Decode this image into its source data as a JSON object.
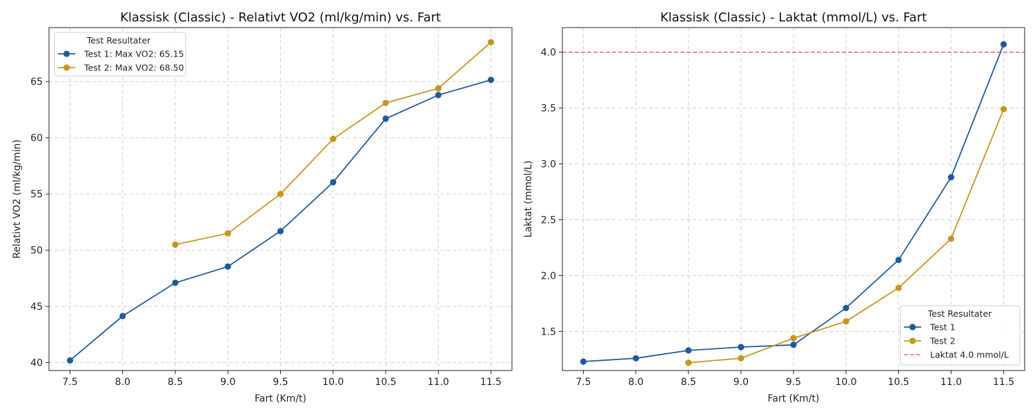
{
  "chart_data": [
    {
      "type": "line",
      "title": "Klassisk (Classic) - Relativt VO2 (ml/kg/min) vs. Fart",
      "xlabel": "Fart (Km/t)",
      "ylabel": "Relativt VO2 (ml/kg/min)",
      "xlim": [
        7.3,
        11.7
      ],
      "ylim": [
        39.3,
        69.8
      ],
      "xticks": [
        7.5,
        8.0,
        8.5,
        9.0,
        9.5,
        10.0,
        10.5,
        11.0,
        11.5
      ],
      "xtick_labels": [
        "7.5",
        "8.0",
        "8.5",
        "9.0",
        "9.5",
        "10.0",
        "10.5",
        "11.0",
        "11.5"
      ],
      "yticks": [
        40,
        45,
        50,
        55,
        60,
        65
      ],
      "ytick_labels": [
        "40",
        "45",
        "50",
        "55",
        "60",
        "65"
      ],
      "grid": true,
      "legend": {
        "title": "Test Resultater",
        "position": "top-left",
        "entries": [
          "Test 1: Max VO2: 65.15",
          "Test 2: Max VO2: 68.50"
        ]
      },
      "series": [
        {
          "name": "Test 1: Max VO2: 65.15",
          "color": "#1f5a9e",
          "x": [
            7.5,
            8.0,
            8.5,
            9.0,
            9.5,
            10.0,
            10.5,
            11.0,
            11.5
          ],
          "values": [
            40.2,
            44.15,
            47.1,
            48.55,
            51.7,
            56.05,
            61.7,
            63.8,
            65.15
          ]
        },
        {
          "name": "Test 2: Max VO2: 68.50",
          "color": "#c9941f",
          "x": [
            8.5,
            9.0,
            9.5,
            10.0,
            10.5,
            11.0,
            11.5
          ],
          "values": [
            50.5,
            51.5,
            55.0,
            59.9,
            63.1,
            64.4,
            68.5
          ]
        }
      ]
    },
    {
      "type": "line",
      "title": "Klassisk (Classic) - Laktat (mmol/L) vs. Fart",
      "xlabel": "Fart (Km/t)",
      "ylabel": "Laktat (mmol/L)",
      "xlim": [
        7.3,
        11.7
      ],
      "ylim": [
        1.15,
        4.22
      ],
      "xticks": [
        7.5,
        8.0,
        8.5,
        9.0,
        9.5,
        10.0,
        10.5,
        11.0,
        11.5
      ],
      "xtick_labels": [
        "7.5",
        "8.0",
        "8.5",
        "9.0",
        "9.5",
        "10.0",
        "10.5",
        "11.0",
        "11.5"
      ],
      "yticks": [
        1.5,
        2.0,
        2.5,
        3.0,
        3.5,
        4.0
      ],
      "ytick_labels": [
        "1.5",
        "2.0",
        "2.5",
        "3.0",
        "3.5",
        "4.0"
      ],
      "grid": true,
      "legend": {
        "title": "Test Resultater",
        "position": "bottom-right",
        "entries": [
          "Test 1",
          "Test 2",
          "Laktat 4.0 mmol/L"
        ]
      },
      "series": [
        {
          "name": "Test 1",
          "color": "#1f5a9e",
          "x": [
            7.5,
            8.0,
            8.5,
            9.0,
            9.5,
            10.0,
            10.5,
            11.0,
            11.5
          ],
          "values": [
            1.23,
            1.26,
            1.33,
            1.36,
            1.38,
            1.71,
            2.14,
            2.88,
            4.07
          ]
        },
        {
          "name": "Test 2",
          "color": "#c9941f",
          "x": [
            8.5,
            9.0,
            9.5,
            10.0,
            10.5,
            11.0,
            11.5
          ],
          "values": [
            1.22,
            1.26,
            1.44,
            1.59,
            1.89,
            2.33,
            3.49
          ]
        }
      ],
      "reference_line": {
        "name": "Laktat 4.0 mmol/L",
        "y": 4.0,
        "color": "#d9534f",
        "style": "dashed"
      }
    }
  ]
}
